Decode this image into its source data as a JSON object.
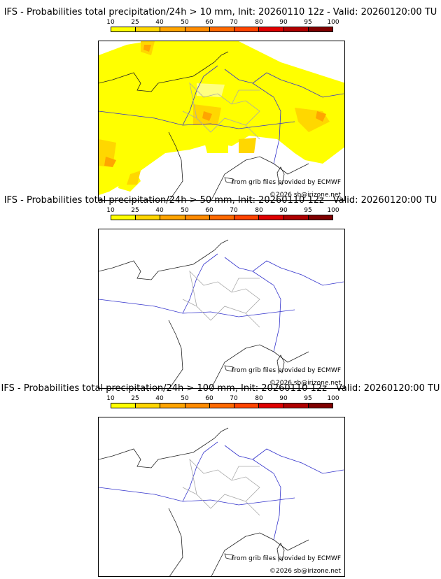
{
  "scale": {
    "ticks": [
      "10",
      "25",
      "40",
      "50",
      "60",
      "70",
      "80",
      "90",
      "95",
      "100"
    ],
    "colors": [
      "#ffff00",
      "#ffd700",
      "#ffa500",
      "#ff8c00",
      "#ff6a00",
      "#ff4500",
      "#e00000",
      "#b00000",
      "#800000",
      "#4b0000"
    ]
  },
  "panels": [
    {
      "title": "IFS - Probabilities total precipitation/24h > 10 mm, Init: 20260110 12z - Valid: 20260120:00 TU",
      "credit_source": "from grib files provided by ECMWF",
      "credit_copyright": "©2026 sb@irizone.net"
    },
    {
      "title": "IFS - Probabilities total precipitation/24h > 50 mm, Init: 20260110 12z - Valid: 20260120:00 TU",
      "credit_source": "from grib files provided by ECMWF",
      "credit_copyright": "©2026 sb@irizone.net"
    },
    {
      "title": "IFS - Probabilities total precipitation/24h > 100 mm, Init: 20260110 12z - Valid: 20260120:00 TU",
      "credit_source": "from grib files provided by ECMWF",
      "credit_copyright": "©2026 sb@irizone.net"
    }
  ]
}
